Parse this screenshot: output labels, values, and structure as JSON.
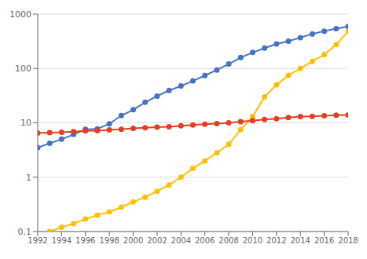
{
  "chart_data": {
    "type": "line",
    "log": "y",
    "grid": "y",
    "marker": "circle",
    "xlim": [
      1992,
      2018
    ],
    "xticks": [
      1992,
      1994,
      1996,
      1998,
      2000,
      2002,
      2004,
      2006,
      2008,
      2010,
      2012,
      2014,
      2016,
      2018
    ],
    "ylim": [
      0.1,
      1000
    ],
    "yticks": [
      {
        "value": 0.1,
        "label": "0,1"
      },
      1,
      10,
      100,
      1000
    ],
    "series": [
      {
        "color": "#4472C4",
        "x": [
          1992,
          1993,
          1994,
          1995,
          1996,
          1997,
          1998,
          1999,
          2000,
          2001,
          2002,
          2003,
          2004,
          2005,
          2006,
          2007,
          2008,
          2009,
          2010,
          2011,
          2012,
          2013,
          2014,
          2015,
          2016,
          2017,
          2018
        ],
        "values": [
          3.5,
          4.2,
          5.0,
          6.1,
          7.6,
          7.7,
          9.6,
          13.6,
          17.4,
          23.9,
          31.1,
          39.4,
          47.6,
          59.1,
          74.1,
          93.9,
          120.7,
          158.9,
          197.0,
          237.7,
          282.5,
          318.1,
          370.0,
          433.0,
          487.0,
          539.6,
          591.0
        ]
      },
      {
        "color": "#FFC000",
        "x": [
          1993,
          1994,
          1995,
          1996,
          1997,
          1998,
          1999,
          2000,
          2001,
          2002,
          2003,
          2004,
          2005,
          2006,
          2007,
          2008,
          2009,
          2010,
          2011,
          2012,
          2013,
          2014,
          2015,
          2016,
          2017,
          2018
        ],
        "values": [
          0.1,
          0.12,
          0.14,
          0.17,
          0.2,
          0.23,
          0.28,
          0.35,
          0.43,
          0.55,
          0.72,
          1.0,
          1.45,
          2.0,
          2.8,
          4.0,
          7.5,
          13.0,
          30.0,
          50.0,
          75.0,
          100.0,
          135.0,
          180.0,
          275.0,
          480.0
        ]
      },
      {
        "color": "#E04020",
        "x": [
          1992,
          1993,
          1994,
          1995,
          1996,
          1997,
          1998,
          1999,
          2000,
          2001,
          2002,
          2003,
          2004,
          2005,
          2006,
          2007,
          2008,
          2009,
          2010,
          2011,
          2012,
          2013,
          2014,
          2015,
          2016,
          2017,
          2018
        ],
        "values": [
          6.5,
          6.6,
          6.7,
          6.9,
          7.1,
          7.2,
          7.4,
          7.6,
          7.9,
          8.1,
          8.3,
          8.5,
          8.8,
          9.1,
          9.4,
          9.7,
          10.0,
          10.5,
          11.0,
          11.5,
          11.9,
          12.5,
          13.0,
          13.2,
          13.5,
          13.8,
          14.0
        ]
      }
    ]
  }
}
